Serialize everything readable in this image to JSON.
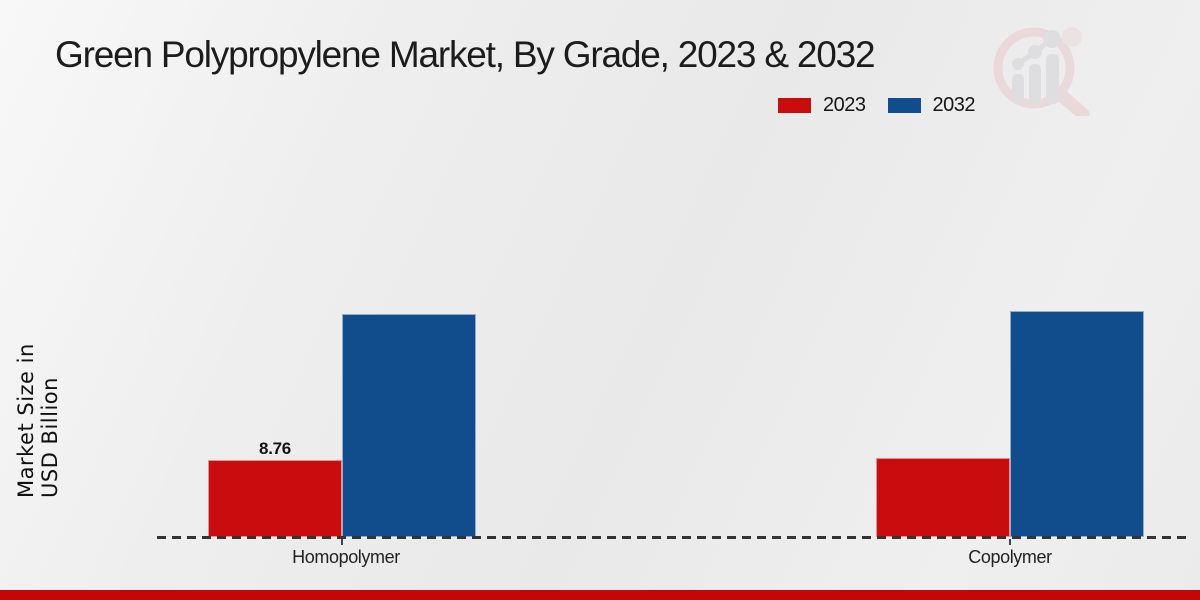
{
  "title": "Green Polypropylene Market, By Grade, 2023 & 2032",
  "y_axis_label": "Market Size in USD Billion",
  "footer": {
    "color": "#c40606"
  },
  "watermark": {
    "icon": "bar-chart-magnifier-logo",
    "ring_color": "#e9c9cb",
    "bars_color": "#d2d2d6"
  },
  "chart_data": {
    "type": "bar",
    "title": "Green Polypropylene Market, By Grade, 2023 & 2032",
    "xlabel": "",
    "ylabel": "Market Size in USD Billion",
    "categories": [
      "Homopolymer",
      "Copolymer"
    ],
    "series": [
      {
        "name": "2023",
        "color": "#c90d0e",
        "values": [
          8.76,
          9.0
        ],
        "value_labels": [
          "8.76",
          ""
        ]
      },
      {
        "name": "2032",
        "color": "#114c8c",
        "values": [
          25.4,
          25.7
        ],
        "value_labels": [
          "",
          ""
        ]
      }
    ],
    "grid": false,
    "legend_position": "top-right",
    "baseline_style": "dashed",
    "y_axis_ticks_visible": false
  }
}
